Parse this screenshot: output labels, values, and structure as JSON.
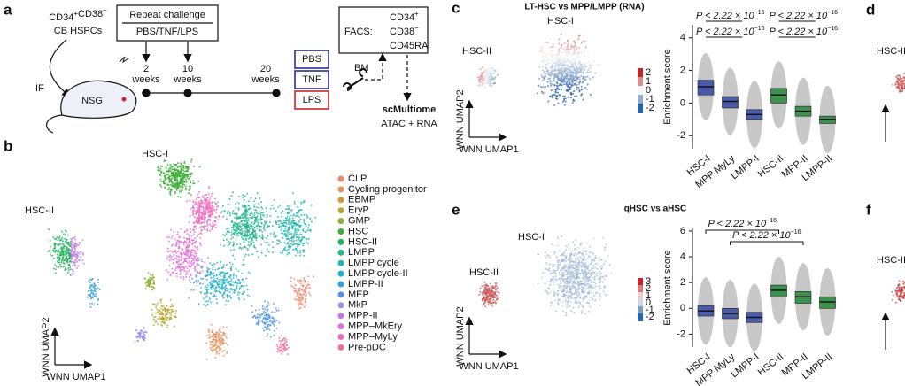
{
  "panel_a": {
    "label": "a",
    "source": [
      [
        {
          "text": "CD34",
          "sup": "+"
        },
        {
          "text": "CD38",
          "sup": "−"
        }
      ],
      [
        {
          "text": "CB HSPCs"
        }
      ]
    ],
    "challenge_title": "Repeat challenge",
    "challenge_agents": "PBS/TNF/LPS",
    "route": "IF",
    "mouse": "NSG",
    "timepoints": [
      {
        "n": "2",
        "unit": "weeks"
      },
      {
        "n": "10",
        "unit": "weeks"
      },
      {
        "n": "20",
        "unit": "weeks"
      }
    ],
    "groups": [
      "PBS",
      "TNF",
      "LPS"
    ],
    "tissue": "BM",
    "facs_label": "FACS:",
    "facs_markers": [
      [
        {
          "text": "CD34",
          "sup": "+"
        }
      ],
      [
        {
          "text": "CD38",
          "sup": "−"
        }
      ],
      [
        {
          "text": "CD45RA",
          "sup": "−"
        }
      ]
    ],
    "assay": "scMultiome",
    "assay_detail": "ATAC + RNA"
  },
  "panel_b": {
    "label": "b",
    "cluster_labels": [
      "HSC-I",
      "HSC-II"
    ],
    "axis_y": "WNN UMAP2",
    "axis_x": "WNN UMAP1",
    "legend": [
      {
        "name": "CLP",
        "color": "#f2866b"
      },
      {
        "name": "Cycling progenitor",
        "color": "#e8905a"
      },
      {
        "name": "EBMP",
        "color": "#cf9a3c"
      },
      {
        "name": "EryP",
        "color": "#b6a72e"
      },
      {
        "name": "GMP",
        "color": "#8cb032"
      },
      {
        "name": "HSC",
        "color": "#3aac34"
      },
      {
        "name": "HSC-II",
        "color": "#22b15c"
      },
      {
        "name": "LMPP",
        "color": "#25b592"
      },
      {
        "name": "LMPP cycle",
        "color": "#22b6b0"
      },
      {
        "name": "LMPP cycle-II",
        "color": "#23b0cc"
      },
      {
        "name": "LMPP-II",
        "color": "#33a2de"
      },
      {
        "name": "MEP",
        "color": "#4f93e6"
      },
      {
        "name": "MkP",
        "color": "#9b8bea"
      },
      {
        "name": "MPP-II",
        "color": "#c27ae6"
      },
      {
        "name": "MPP–MkEry",
        "color": "#e16fd6"
      },
      {
        "name": "MPP–MyLy",
        "color": "#ef6bbf"
      },
      {
        "name": "Pre-pDC",
        "color": "#f26d9a"
      }
    ]
  },
  "panel_c": {
    "label": "c",
    "title": "LT-HSC vs MPP/LMPP (RNA)",
    "cluster_labels": [
      "HSC-I",
      "HSC-II"
    ],
    "axis_y": "WNN UMAP2",
    "axis_x": "WNN UMAP1",
    "colorbar_ticks": [
      2,
      1,
      0,
      -1,
      -2
    ],
    "y_label": "Enrichment score",
    "ylim": [
      -2.8,
      4.8
    ],
    "yticks": [
      -2,
      0,
      2,
      4
    ],
    "categories": [
      "HSC-I",
      "MPP MyLy",
      "LMPP-I",
      "HSC-II",
      "MPP-II",
      "LMPP-II"
    ],
    "box_colors": [
      "#3d4fa6",
      "#3d4fa6",
      "#3d4fa6",
      "#2e8b3e",
      "#2e8b3e",
      "#2e8b3e"
    ],
    "medians": [
      1.0,
      0.1,
      -0.7,
      0.5,
      -0.5,
      -1.0
    ],
    "q1": [
      0.5,
      -0.3,
      -1.0,
      0.0,
      -0.8,
      -1.25
    ],
    "q3": [
      1.4,
      0.4,
      -0.4,
      0.9,
      -0.2,
      -0.8
    ],
    "p_values": [
      {
        "text": "P < 2.22 × 10",
        "sup": "−16"
      },
      {
        "text": "P < 2.22 × 10",
        "sup": "−16"
      },
      {
        "text": "P < 2.22 × 10",
        "sup": "−16"
      },
      {
        "text": "P < 2.22 × 10",
        "sup": "−16"
      }
    ]
  },
  "panel_e": {
    "label": "e",
    "title": "qHSC vs aHSC",
    "cluster_labels": [
      "HSC-I",
      "HSC-II"
    ],
    "axis_y": "WNN UMAP2",
    "axis_x": "WNN UMAP1",
    "colorbar_ticks": [
      3,
      2,
      1,
      0,
      -1,
      -2
    ],
    "y_label": "Enrichment score",
    "ylim": [
      -3,
      6.2
    ],
    "yticks": [
      -2,
      0,
      2,
      4,
      6
    ],
    "categories": [
      "HSC-I",
      "MPP MyLy",
      "LMPP-I",
      "HSC-II",
      "MPP-II",
      "LMPP-II"
    ],
    "box_colors": [
      "#3d4fa6",
      "#3d4fa6",
      "#3d4fa6",
      "#2e8b3e",
      "#2e8b3e",
      "#2e8b3e"
    ],
    "medians": [
      -0.2,
      -0.4,
      -0.7,
      1.4,
      0.9,
      0.5
    ],
    "q1": [
      -0.6,
      -0.8,
      -1.1,
      0.9,
      0.4,
      0.0
    ],
    "q3": [
      0.2,
      0.0,
      -0.3,
      1.8,
      1.3,
      0.9
    ],
    "p_values": [
      {
        "text": "P < 2.22 × 10",
        "sup": "−16"
      },
      {
        "text": "P < 2.22 × 10",
        "sup": "−16"
      }
    ]
  },
  "panel_d": {
    "label": "d",
    "cluster_label": "HSC-II"
  },
  "panel_f": {
    "label": "f",
    "cluster_label": "HSC-II"
  }
}
